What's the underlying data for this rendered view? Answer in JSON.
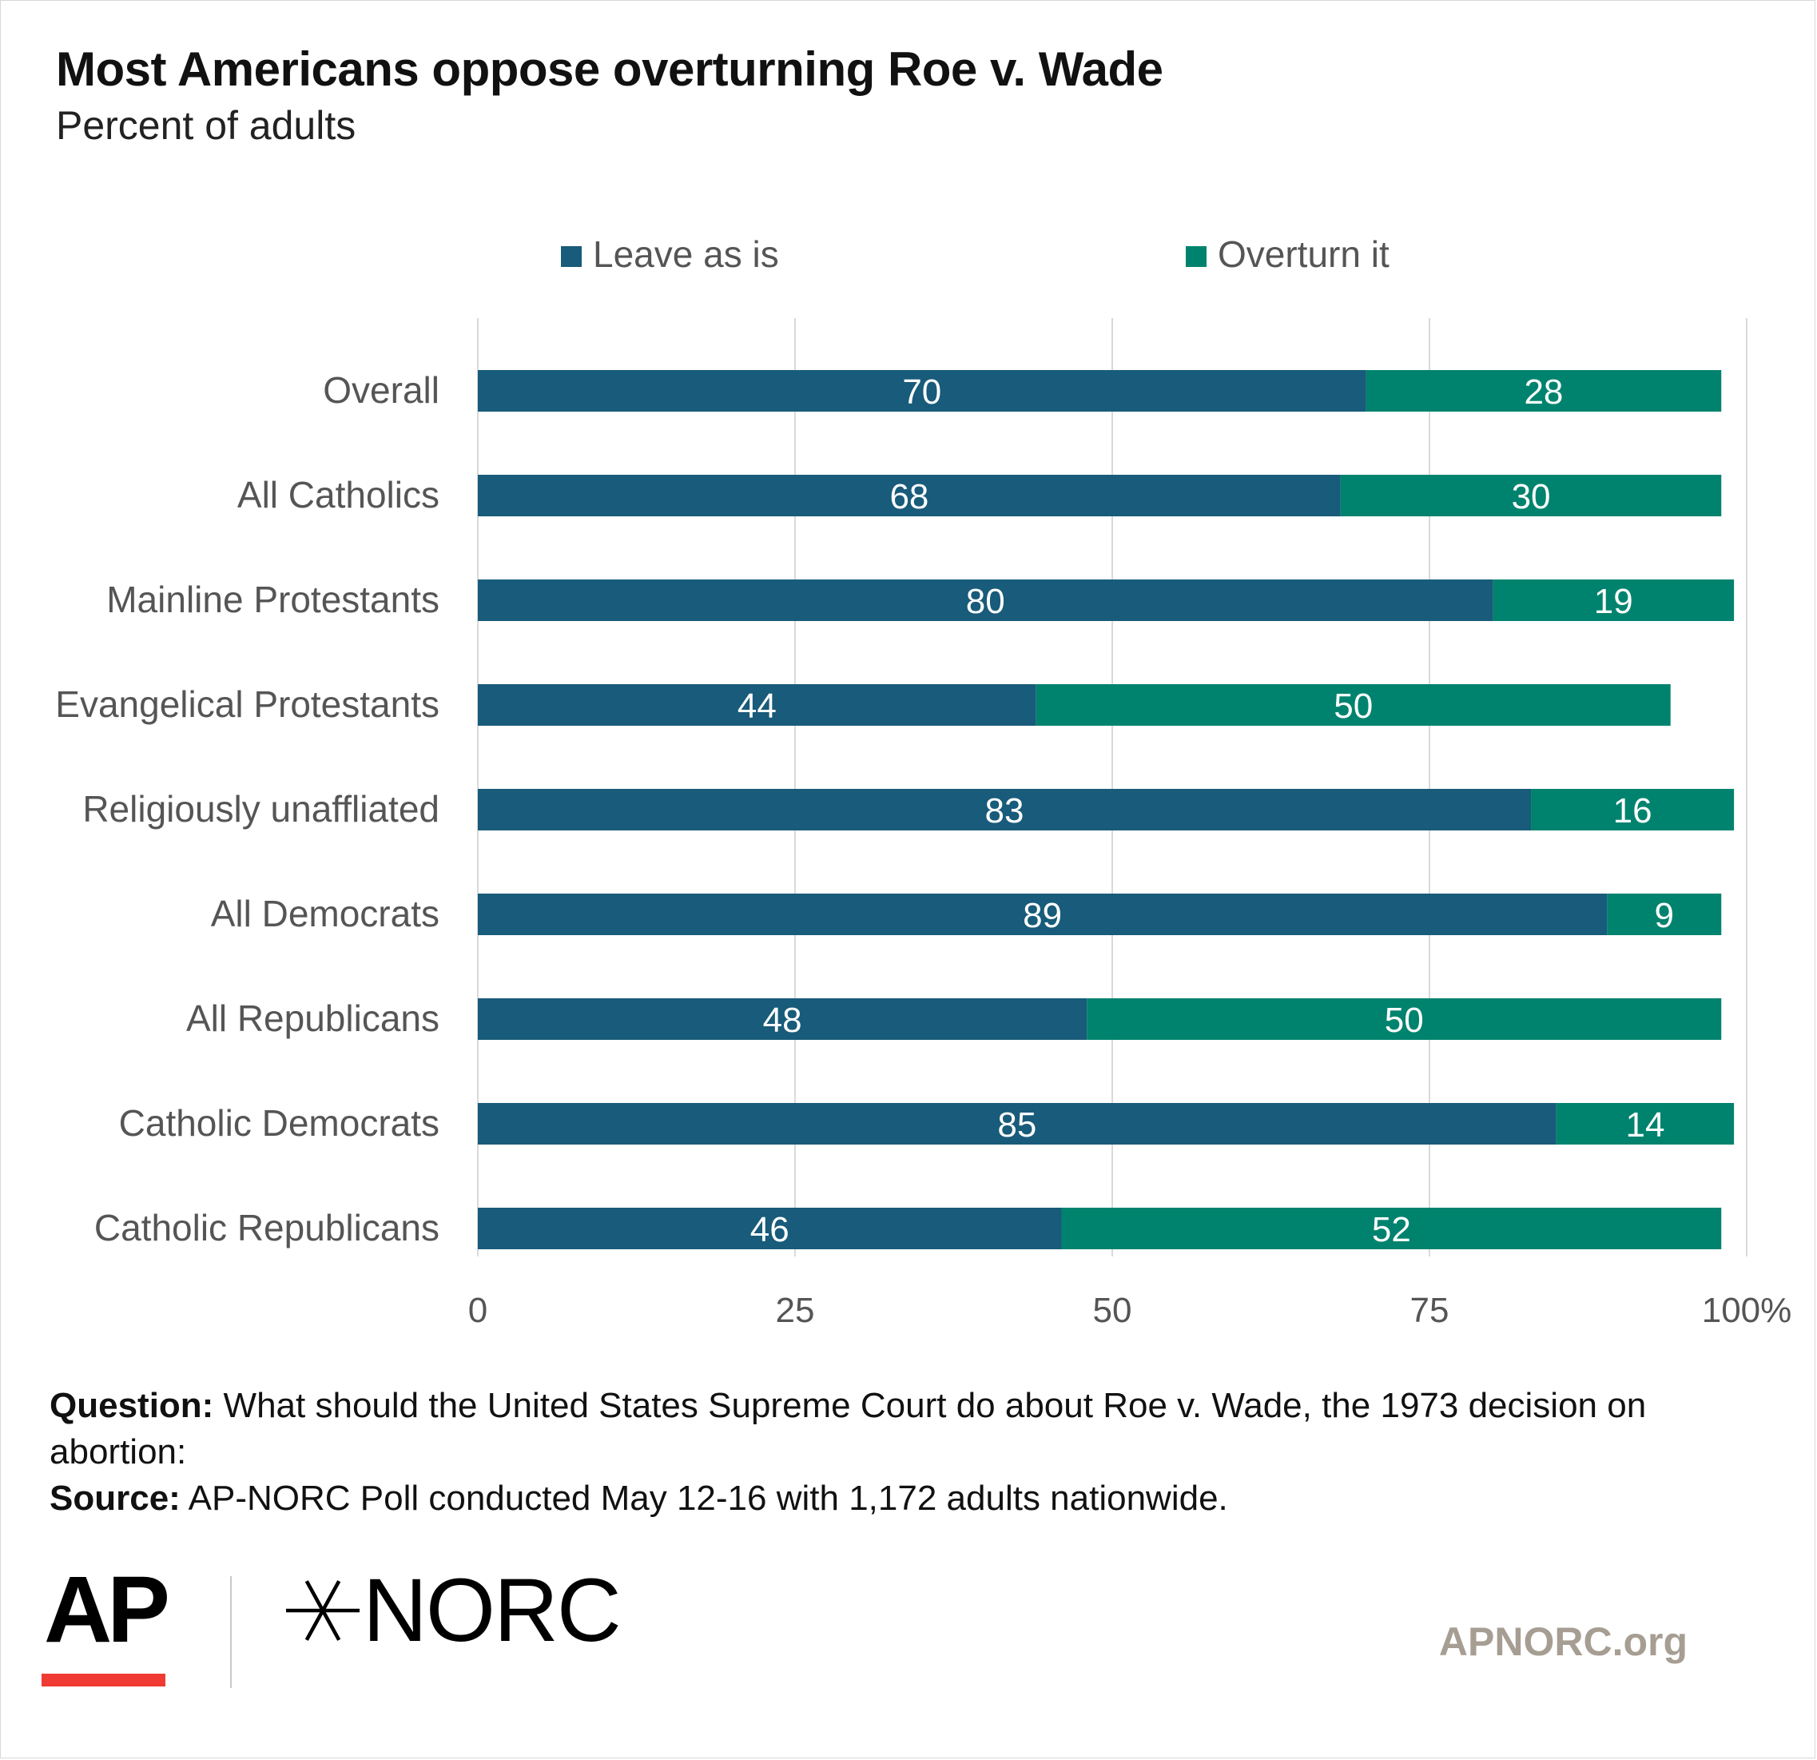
{
  "chart_data": {
    "type": "bar",
    "orientation": "horizontal",
    "stacked": true,
    "title": "Most Americans oppose overturning Roe v. Wade",
    "subtitle": "Percent of adults",
    "categories": [
      "Overall",
      "All Catholics",
      "Mainline Protestants",
      "Evangelical Protestants",
      "Religiously unaffliated",
      "All Democrats",
      "All Republicans",
      "Catholic Democrats",
      "Catholic Republicans"
    ],
    "series": [
      {
        "name": "Leave as is",
        "color": "#185b7a",
        "values": [
          70,
          68,
          80,
          44,
          83,
          89,
          48,
          85,
          46
        ]
      },
      {
        "name": "Overturn it",
        "color": "#00836e",
        "values": [
          28,
          30,
          19,
          50,
          16,
          9,
          50,
          14,
          52
        ]
      }
    ],
    "xlim": [
      0,
      100
    ],
    "xticks": [
      0,
      25,
      50,
      75,
      100
    ],
    "xtick_labels": [
      "0",
      "25",
      "50",
      "75",
      "100%"
    ],
    "grid": true,
    "legend_position": "top"
  },
  "notes": {
    "question_label": "Question:",
    "question_text": " What should the United States Supreme Court do about Roe v. Wade, the 1973 decision on abortion:",
    "source_label": "Source:",
    "source_text": " AP-NORC Poll conducted May 12-16 with 1,172 adults nationwide."
  },
  "footer": {
    "ap_logo": "AP",
    "norc_logo": "NORC",
    "website": "APNORC.org"
  }
}
